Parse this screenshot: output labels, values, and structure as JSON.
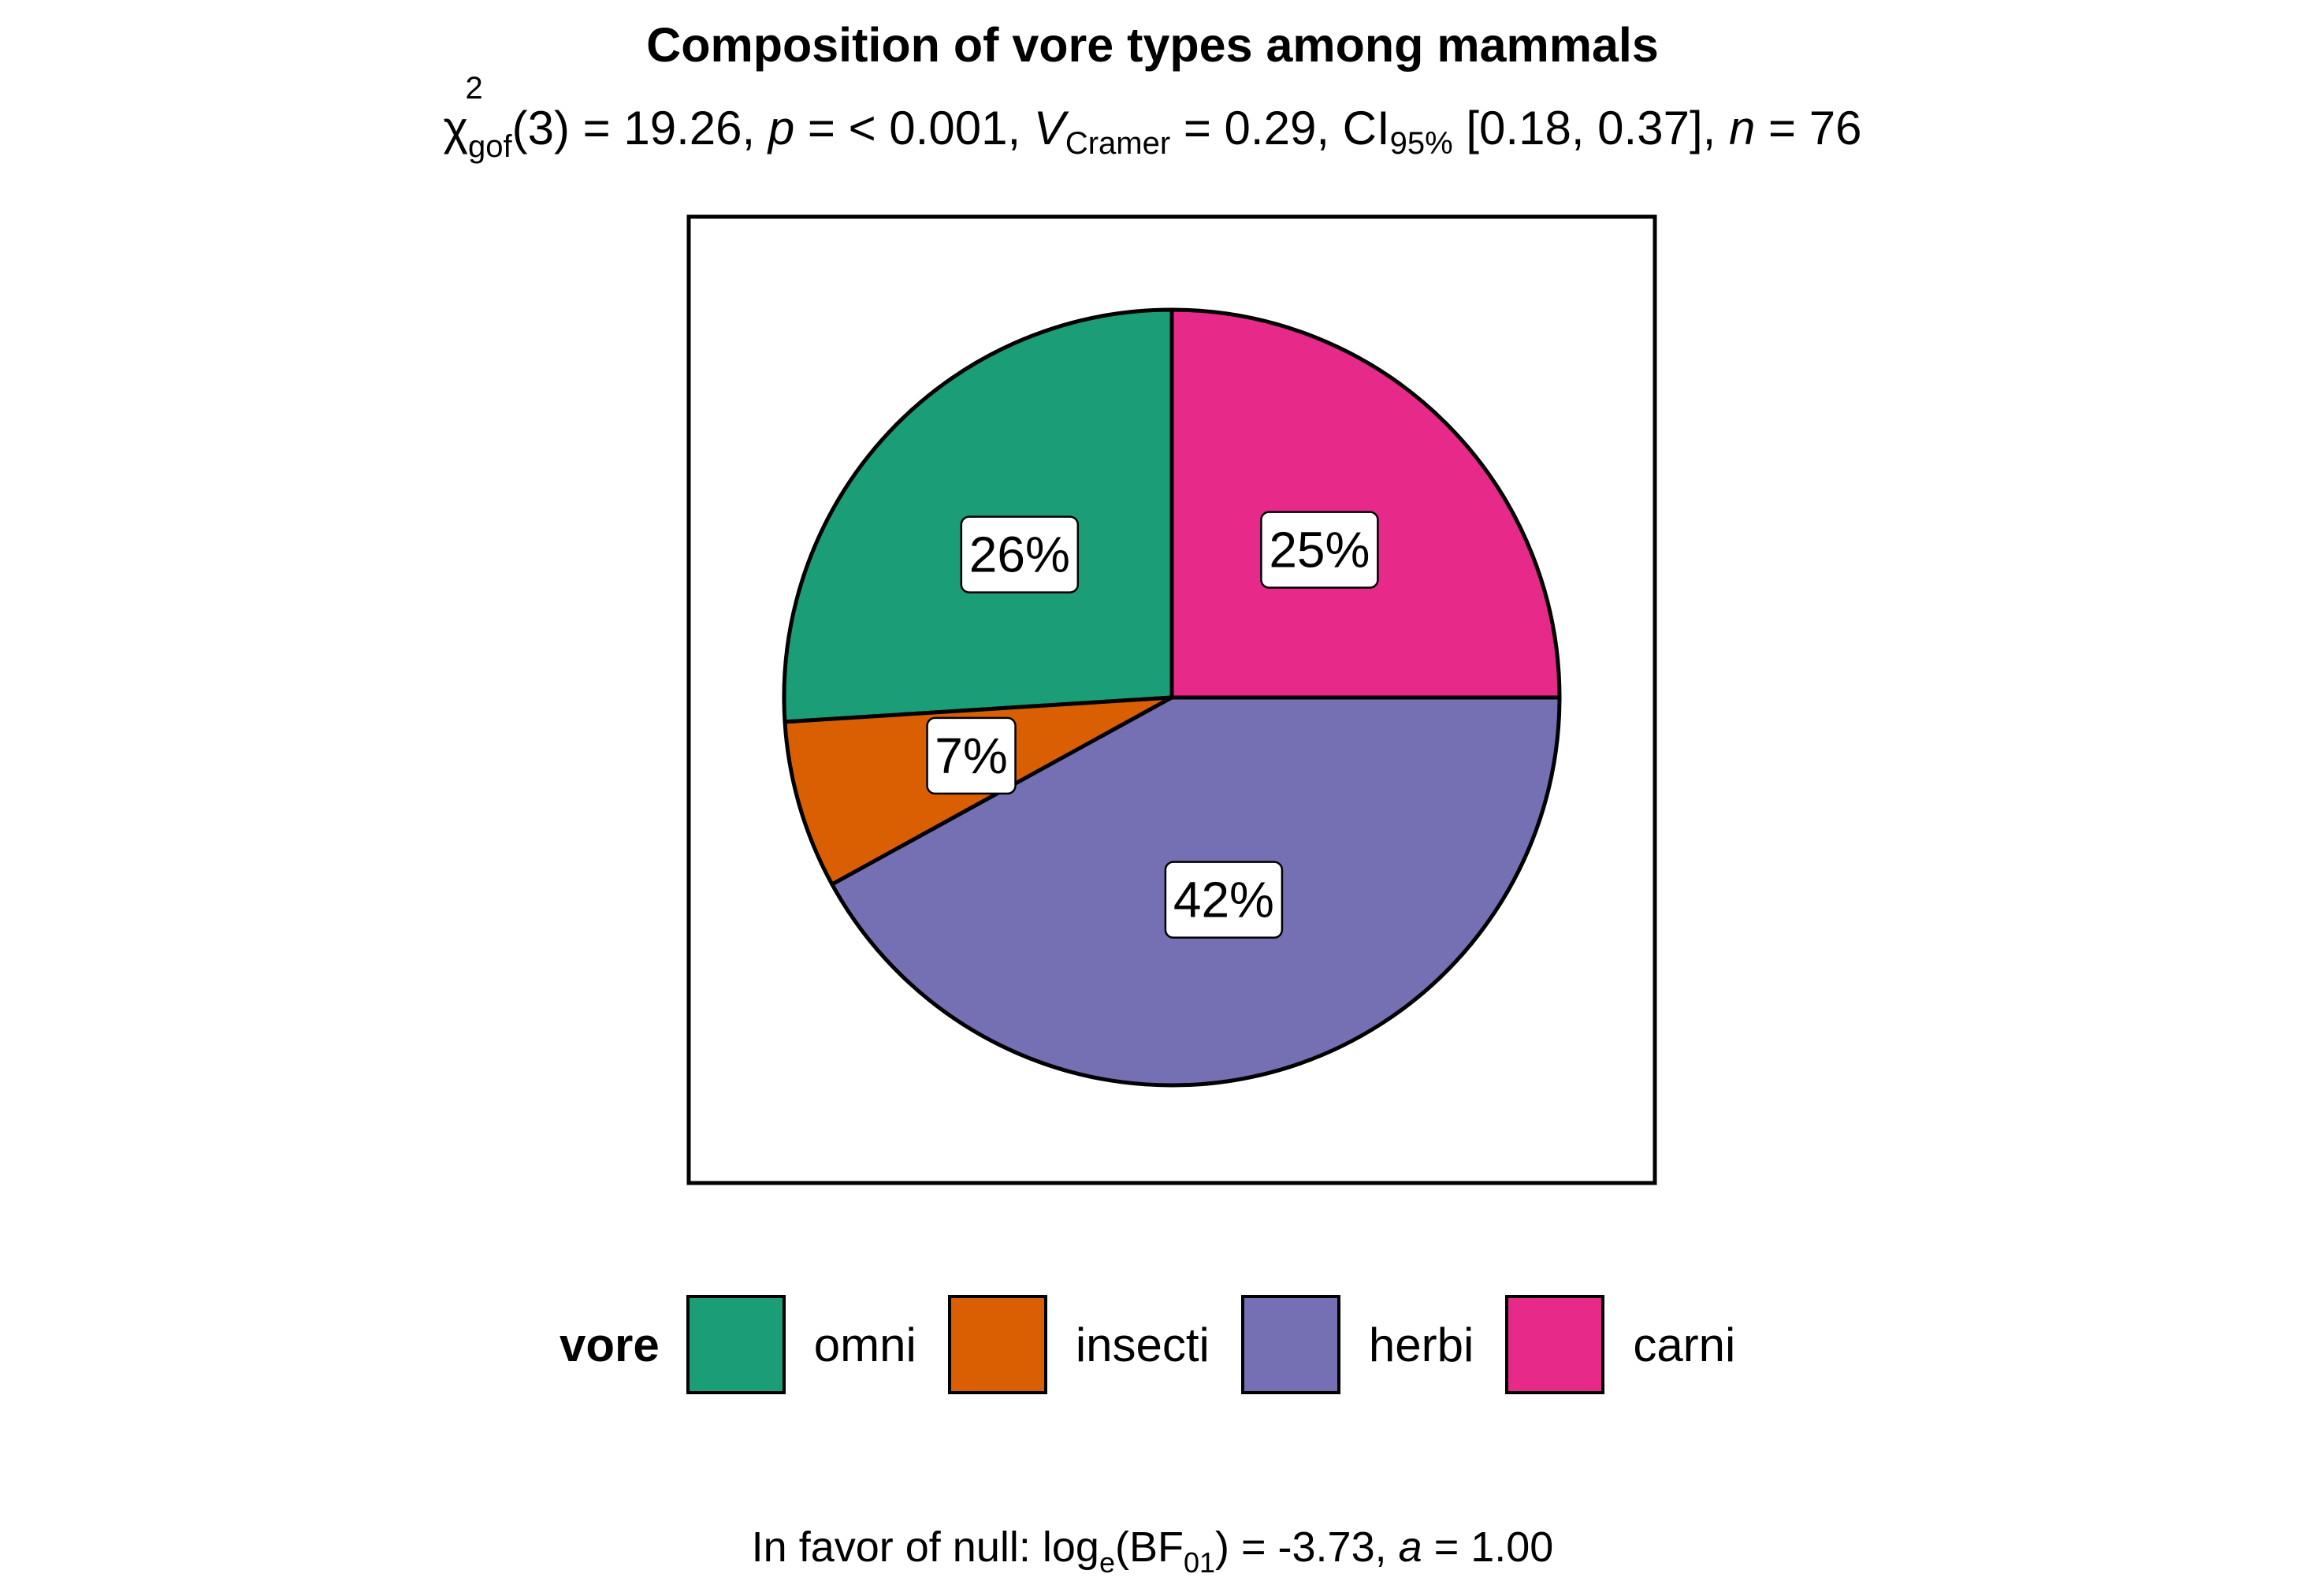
{
  "title": "Composition of vore types among mammals",
  "subtitle": {
    "chi_symbol": "χ",
    "chi_sup": "2",
    "chi_sub": "gof",
    "df_part": "(3) = 19.26, ",
    "p_label": "p",
    "p_part": " = < 0.001, ",
    "v_label": "V",
    "v_sub": "Cramer",
    "v_part": " = 0.29, CI",
    "ci_sub": "95%",
    "ci_part": " [0.18, 0.37], ",
    "n_label": "n",
    "n_part": " = 76"
  },
  "caption": {
    "prefix": "In favor of null: log",
    "log_sub": "e",
    "bf_open": "(BF",
    "bf_sub": "01",
    "bf_close": ") = -3.73, ",
    "a_label": "a",
    "a_part": " = 1.00"
  },
  "chart_data": {
    "type": "pie",
    "categories": [
      "omni",
      "insecti",
      "herbi",
      "carni"
    ],
    "values": [
      26,
      7,
      42,
      25
    ],
    "labels": [
      "26%",
      "7%",
      "42%",
      "25%"
    ],
    "colors": [
      "#1B9E77",
      "#D95F02",
      "#7570B3",
      "#E7298A"
    ],
    "legend_title": "vore",
    "legend_position": "bottom",
    "start": "12 o'clock",
    "direction": "counter-clockwise"
  }
}
